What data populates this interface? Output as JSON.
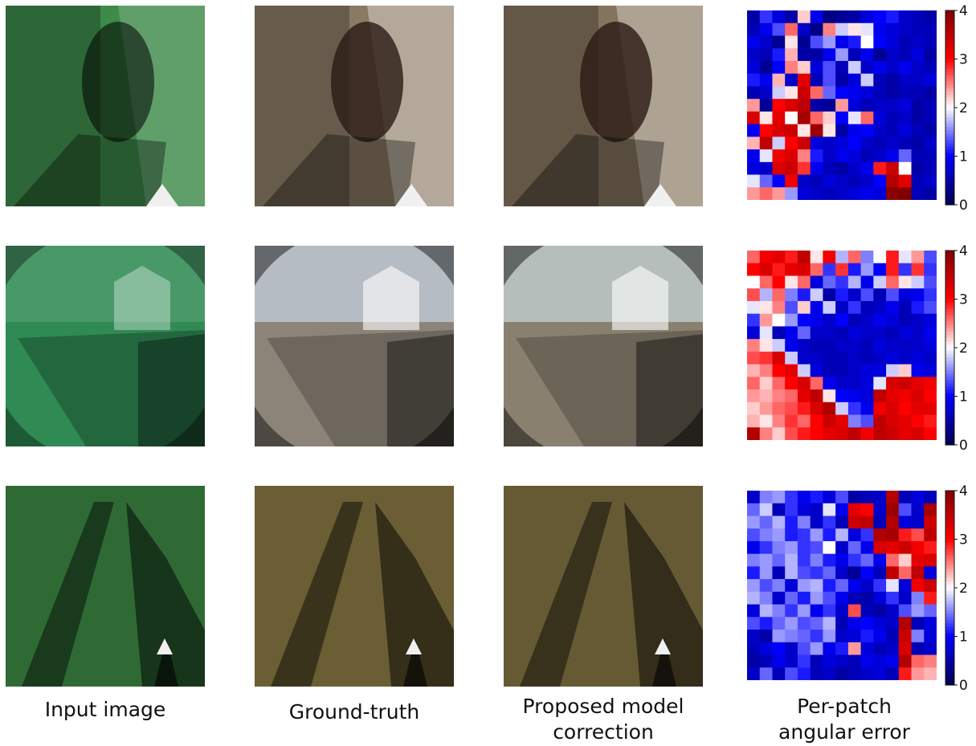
{
  "figure": {
    "captions": [
      {
        "lines": [
          "Input image"
        ]
      },
      {
        "lines": [
          "Ground-truth"
        ]
      },
      {
        "lines": [
          "Proposed model",
          "correction"
        ]
      },
      {
        "lines": [
          "Per-patch",
          "angular error"
        ]
      }
    ],
    "rows": [
      {
        "scene": "garden-wall-hedge",
        "tints": {
          "input": "#3d8a4a",
          "ground_truth": "#8a7a64",
          "prediction": "#86755e"
        }
      },
      {
        "scene": "house-fence-street",
        "tints": {
          "input": "#2f8a54",
          "ground_truth": "#8c8478",
          "prediction": "#8a8070"
        }
      },
      {
        "scene": "grass-shadow",
        "tints": {
          "input": "#2f6a34",
          "ground_truth": "#6b5e34",
          "prediction": "#665a34"
        }
      }
    ]
  },
  "chart_data": [
    {
      "type": "heatmap",
      "title": "",
      "colormap": "seismic",
      "vmin": 0,
      "vmax": 4,
      "colorbar_ticks": [
        "0",
        "1",
        "2",
        "3",
        "4"
      ],
      "grid_size": [
        15,
        15
      ],
      "values": [
        [
          0.5,
          1.2,
          0.8,
          0.5,
          2.2,
          0.9,
          0.3,
          0.4,
          0.5,
          0.8,
          1.0,
          1.1,
          0.7,
          0.6,
          0.5
        ],
        [
          0.6,
          0.9,
          1.3,
          2.6,
          0.7,
          0.3,
          2.5,
          1.8,
          2.1,
          1.9,
          0.9,
          0.8,
          0.7,
          0.6,
          0.6
        ],
        [
          0.9,
          0.7,
          0.4,
          2.1,
          0.4,
          1.3,
          1.6,
          0.9,
          1.1,
          2.0,
          1.0,
          0.8,
          0.6,
          0.7,
          0.6
        ],
        [
          0.7,
          0.6,
          1.1,
          2.3,
          0.5,
          0.5,
          0.9,
          1.6,
          0.6,
          0.9,
          0.4,
          0.7,
          0.6,
          0.8,
          0.5
        ],
        [
          0.8,
          0.4,
          1.0,
          2.5,
          2.2,
          0.8,
          1.3,
          0.6,
          1.8,
          0.7,
          0.9,
          0.7,
          0.9,
          0.7,
          0.6
        ],
        [
          1.1,
          0.9,
          2.3,
          0.7,
          3.2,
          0.6,
          1.3,
          0.5,
          0.8,
          1.8,
          0.6,
          0.5,
          0.7,
          0.7,
          0.8
        ],
        [
          0.6,
          0.7,
          1.8,
          2.1,
          3.4,
          2.6,
          1.4,
          1.0,
          0.9,
          0.8,
          0.6,
          0.5,
          0.6,
          0.6,
          0.5
        ],
        [
          2.4,
          0.4,
          3.0,
          3.3,
          3.5,
          0.5,
          0.4,
          2.4,
          0.8,
          0.6,
          0.7,
          0.7,
          0.8,
          0.5,
          0.6
        ],
        [
          3.3,
          2.1,
          3.2,
          2.0,
          3.7,
          2.6,
          2.2,
          1.0,
          1.9,
          2.6,
          0.8,
          0.6,
          0.7,
          0.5,
          0.6
        ],
        [
          1.0,
          3.0,
          3.3,
          3.4,
          2.1,
          3.8,
          2.1,
          0.5,
          0.9,
          1.0,
          0.7,
          0.6,
          0.8,
          0.6,
          0.5
        ],
        [
          2.3,
          3.5,
          1.8,
          3.0,
          3.4,
          0.8,
          0.7,
          0.8,
          1.0,
          0.7,
          0.6,
          0.7,
          0.6,
          0.5,
          0.7
        ],
        [
          0.9,
          1.9,
          3.1,
          3.3,
          2.5,
          1.1,
          0.7,
          0.9,
          0.8,
          0.6,
          0.7,
          0.9,
          1.4,
          0.6,
          0.6
        ],
        [
          0.8,
          0.7,
          3.3,
          3.4,
          2.8,
          0.9,
          0.6,
          0.5,
          0.7,
          0.9,
          2.9,
          3.4,
          2.0,
          0.5,
          0.6
        ],
        [
          1.9,
          1.4,
          1.0,
          3.1,
          0.7,
          0.6,
          0.8,
          0.7,
          0.6,
          0.7,
          1.0,
          3.6,
          3.2,
          0.6,
          0.7
        ],
        [
          2.4,
          2.6,
          2.4,
          1.6,
          0.8,
          0.7,
          0.6,
          0.7,
          0.8,
          0.9,
          0.8,
          3.9,
          4.0,
          0.6,
          0.5
        ]
      ]
    },
    {
      "type": "heatmap",
      "title": "",
      "colormap": "seismic",
      "vmin": 0,
      "vmax": 4,
      "colorbar_ticks": [
        "0",
        "1",
        "2",
        "3",
        "4"
      ],
      "grid_size": [
        15,
        15
      ],
      "values": [
        [
          2.6,
          3.1,
          3.2,
          2.9,
          3.5,
          2.1,
          3.1,
          1.7,
          2.6,
          1.5,
          2.0,
          2.9,
          1.9,
          2.4,
          1.3
        ],
        [
          3.0,
          3.3,
          2.9,
          3.2,
          3.3,
          2.6,
          1.2,
          2.8,
          1.1,
          1.6,
          1.0,
          2.9,
          1.2,
          2.8,
          1.2
        ],
        [
          2.0,
          2.6,
          3.0,
          2.1,
          2.6,
          0.8,
          1.4,
          1.2,
          1.7,
          0.9,
          1.8,
          2.6,
          2.1,
          1.8,
          1.3
        ],
        [
          2.7,
          1.7,
          2.6,
          1.5,
          1.1,
          1.8,
          0.5,
          1.1,
          0.7,
          1.3,
          0.6,
          1.3,
          0.8,
          0.9,
          1.2
        ],
        [
          1.9,
          2.1,
          2.5,
          1.3,
          2.2,
          0.9,
          1.8,
          0.7,
          1.2,
          0.6,
          0.7,
          0.9,
          0.6,
          1.1,
          1.3
        ],
        [
          1.2,
          2.4,
          2.0,
          1.6,
          1.0,
          0.9,
          0.7,
          1.0,
          0.6,
          0.7,
          0.9,
          0.8,
          0.6,
          0.7,
          0.8
        ],
        [
          0.8,
          1.9,
          0.6,
          0.9,
          1.4,
          0.7,
          0.7,
          0.6,
          0.8,
          0.7,
          0.7,
          0.6,
          0.8,
          0.7,
          0.9
        ],
        [
          2.5,
          2.1,
          1.8,
          0.9,
          0.7,
          0.6,
          0.6,
          0.7,
          0.7,
          0.6,
          0.8,
          0.7,
          0.7,
          0.7,
          0.8
        ],
        [
          2.7,
          2.8,
          3.3,
          1.8,
          0.7,
          0.7,
          0.6,
          0.6,
          0.7,
          0.6,
          0.7,
          0.8,
          0.7,
          0.8,
          0.7
        ],
        [
          2.3,
          2.5,
          3.0,
          3.2,
          1.8,
          0.8,
          0.6,
          0.6,
          0.7,
          0.8,
          0.8,
          1.8,
          2.2,
          0.9,
          0.8
        ],
        [
          2.6,
          2.2,
          2.6,
          3.0,
          3.3,
          2.6,
          0.9,
          0.7,
          0.7,
          0.8,
          1.9,
          3.3,
          3.4,
          3.2,
          3.1
        ],
        [
          2.4,
          2.3,
          2.5,
          2.6,
          3.2,
          3.5,
          2.1,
          1.0,
          0.9,
          0.8,
          3.5,
          3.2,
          3.1,
          3.3,
          3.0
        ],
        [
          2.2,
          2.4,
          2.6,
          2.7,
          2.9,
          3.3,
          3.6,
          1.8,
          1.2,
          0.9,
          3.1,
          3.3,
          3.0,
          3.2,
          3.2
        ],
        [
          2.3,
          2.1,
          2.5,
          2.8,
          2.6,
          3.0,
          3.4,
          3.2,
          1.5,
          1.3,
          3.5,
          3.3,
          3.2,
          3.0,
          2.9
        ],
        [
          3.6,
          2.5,
          2.2,
          2.7,
          2.9,
          3.0,
          3.2,
          3.3,
          3.5,
          3.1,
          3.5,
          3.4,
          3.2,
          3.3,
          3.0
        ]
      ]
    },
    {
      "type": "heatmap",
      "title": "",
      "colormap": "seismic",
      "vmin": 0,
      "vmax": 4,
      "colorbar_ticks": [
        "0",
        "1",
        "2",
        "3",
        "4"
      ],
      "grid_size": [
        15,
        15
      ],
      "values": [
        [
          0.7,
          1.5,
          1.6,
          1.2,
          0.9,
          1.1,
          0.8,
          1.3,
          0.5,
          0.6,
          0.7,
          3.6,
          0.6,
          0.8,
          0.6
        ],
        [
          1.4,
          1.8,
          0.6,
          1.2,
          0.8,
          0.7,
          1.9,
          0.9,
          3.2,
          3.0,
          0.7,
          3.8,
          1.3,
          0.7,
          3.7
        ],
        [
          1.6,
          1.4,
          1.7,
          1.1,
          1.5,
          0.7,
          1.2,
          0.6,
          3.4,
          3.5,
          0.6,
          3.6,
          0.8,
          0.7,
          3.4
        ],
        [
          1.3,
          1.5,
          1.6,
          1.1,
          1.2,
          1.6,
          1.1,
          1.7,
          0.8,
          1.2,
          3.6,
          3.7,
          2.9,
          2.7,
          3.5
        ],
        [
          0.9,
          1.2,
          1.5,
          1.6,
          1.2,
          1.3,
          2.0,
          0.7,
          1.4,
          0.9,
          3.3,
          3.2,
          3.4,
          3.1,
          2.9
        ],
        [
          1.5,
          1.6,
          1.4,
          1.7,
          1.2,
          1.5,
          1.1,
          0.9,
          1.2,
          1.4,
          0.9,
          2.6,
          2.2,
          3.2,
          3.3
        ],
        [
          1.1,
          1.6,
          0.6,
          1.7,
          1.3,
          1.2,
          1.4,
          0.7,
          0.4,
          1.0,
          0.6,
          3.5,
          2.6,
          3.5,
          0.8
        ],
        [
          1.6,
          1.3,
          1.5,
          0.8,
          1.6,
          1.7,
          1.1,
          1.4,
          0.9,
          0.7,
          1.2,
          1.9,
          0.8,
          3.1,
          3.4
        ],
        [
          1.7,
          1.5,
          0.7,
          1.4,
          1.1,
          1.6,
          1.3,
          0.9,
          0.6,
          0.5,
          0.8,
          1.2,
          0.7,
          1.5,
          2.9
        ],
        [
          0.8,
          1.7,
          1.5,
          1.2,
          1.6,
          0.9,
          1.2,
          0.7,
          2.7,
          0.6,
          0.5,
          0.7,
          1.3,
          1.6,
          1.4
        ],
        [
          1.3,
          1.1,
          1.4,
          1.6,
          1.3,
          1.4,
          1.7,
          0.6,
          0.9,
          1.0,
          0.8,
          0.7,
          3.6,
          0.6,
          0.8
        ],
        [
          0.7,
          0.5,
          1.6,
          1.5,
          1.4,
          1.2,
          1.6,
          0.7,
          0.8,
          1.1,
          0.9,
          0.6,
          3.4,
          1.5,
          0.8
        ],
        [
          0.6,
          0.8,
          1.0,
          0.7,
          1.3,
          1.6,
          0.9,
          1.1,
          2.4,
          0.8,
          0.6,
          0.7,
          3.3,
          0.6,
          0.7
        ],
        [
          0.5,
          0.6,
          0.9,
          0.7,
          1.2,
          0.6,
          0.8,
          0.7,
          0.6,
          0.9,
          0.8,
          0.9,
          3.6,
          2.6,
          2.5
        ],
        [
          0.7,
          1.4,
          0.6,
          1.3,
          1.1,
          0.6,
          0.7,
          0.5,
          0.6,
          0.7,
          0.8,
          0.6,
          2.9,
          2.4,
          2.3
        ]
      ]
    }
  ]
}
